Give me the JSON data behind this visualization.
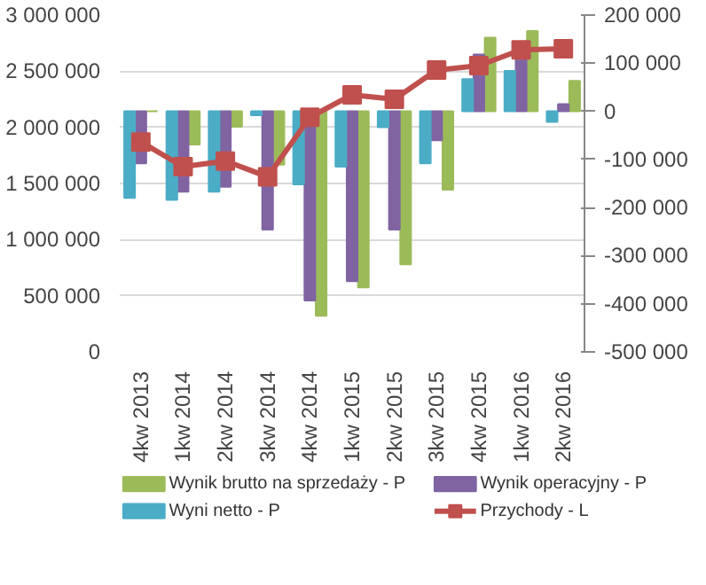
{
  "chart_data": {
    "type": "bar",
    "categories": [
      "4kw 2013",
      "1kw 2014",
      "2kw 2014",
      "3kw 2014",
      "4kw 2014",
      "1kw 2015",
      "2kw 2015",
      "3kw 2015",
      "4kw 2015",
      "1kw 2016",
      "2kw 2016"
    ],
    "series": [
      {
        "name": "Wynik brutto na sprzedaży - P",
        "color": "#9bbb59",
        "axis": "y2",
        "values": [
          0,
          -69000,
          -32000,
          -111000,
          -425000,
          -366000,
          -318000,
          -163000,
          153000,
          167000,
          63000
        ]
      },
      {
        "name": "Wynik operacyjny - P",
        "color": "#8064a2",
        "axis": "y2",
        "values": [
          -108000,
          -167000,
          -157000,
          -246000,
          -393000,
          -353000,
          -246000,
          -60000,
          118000,
          113000,
          15000
        ]
      },
      {
        "name": "Wyni netto - P",
        "color": "#4bacc6",
        "axis": "y2",
        "values": [
          -180000,
          -184000,
          -167000,
          -8000,
          -152000,
          -115000,
          -33000,
          -108000,
          67000,
          84000,
          -22000
        ]
      },
      {
        "name": "Przychody - L",
        "type": "line",
        "color": "#c0504d",
        "marker": "square",
        "values": [
          1870000,
          1650000,
          1700000,
          1560000,
          2090000,
          2290000,
          2250000,
          2510000,
          2550000,
          2690000,
          2700000
        ]
      }
    ],
    "ylim": [
      0,
      3000000
    ],
    "yticks": [
      {
        "value": 0,
        "label": "0"
      },
      {
        "value": 500000,
        "label": "500 000"
      },
      {
        "value": 1000000,
        "label": "1 000 000"
      },
      {
        "value": 1500000,
        "label": "1 500 000"
      },
      {
        "value": 2000000,
        "label": "2 000 000"
      },
      {
        "value": 2500000,
        "label": "2 500 000"
      },
      {
        "value": 3000000,
        "label": "3 000 000"
      }
    ],
    "y2lim": [
      -500000,
      200000
    ],
    "y2ticks": [
      {
        "value": -500000,
        "label": "-500 000"
      },
      {
        "value": -400000,
        "label": "-400 000"
      },
      {
        "value": -300000,
        "label": "-300 000"
      },
      {
        "value": -200000,
        "label": "-200 000"
      },
      {
        "value": -100000,
        "label": "-100 000"
      },
      {
        "value": 0,
        "label": "0"
      },
      {
        "value": 100000,
        "label": "100 000"
      },
      {
        "value": 200000,
        "label": "200 000"
      }
    ],
    "grid": "y",
    "legend": "bottom"
  }
}
